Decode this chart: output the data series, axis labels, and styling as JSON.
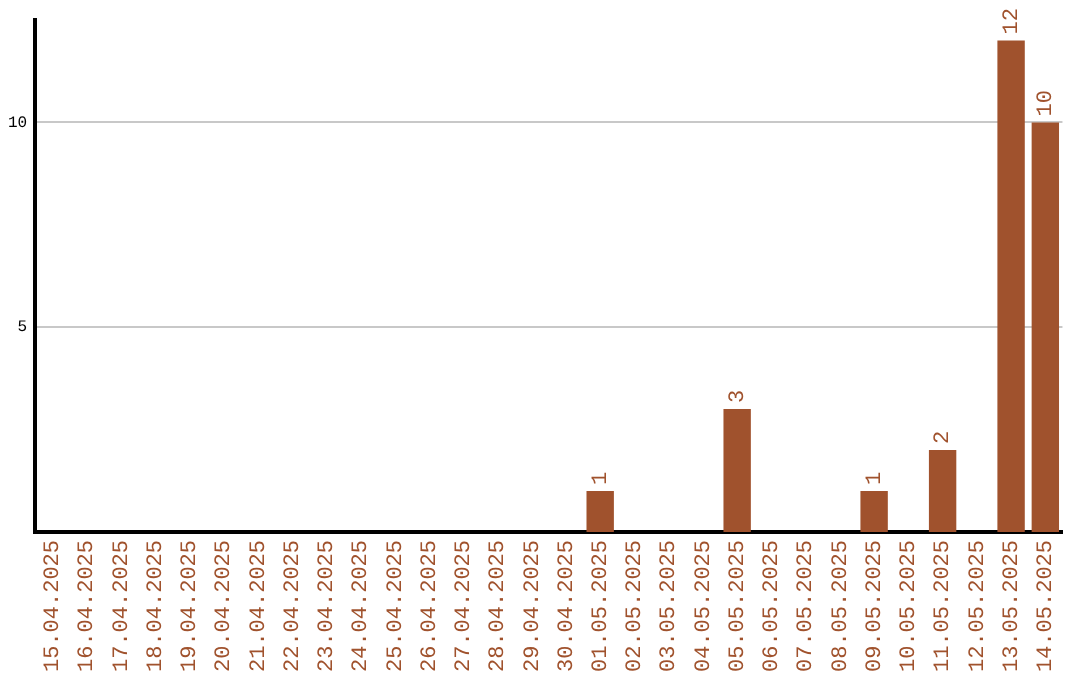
{
  "chart_data": {
    "type": "bar",
    "categories": [
      "15.04.2025",
      "16.04.2025",
      "17.04.2025",
      "18.04.2025",
      "19.04.2025",
      "20.04.2025",
      "21.04.2025",
      "22.04.2025",
      "23.04.2025",
      "24.04.2025",
      "25.04.2025",
      "26.04.2025",
      "27.04.2025",
      "28.04.2025",
      "29.04.2025",
      "30.04.2025",
      "01.05.2025",
      "02.05.2025",
      "03.05.2025",
      "04.05.2025",
      "05.05.2025",
      "06.05.2025",
      "07.05.2025",
      "08.05.2025",
      "09.05.2025",
      "10.05.2025",
      "11.05.2025",
      "12.05.2025",
      "13.05.2025",
      "14.05.2025"
    ],
    "values": [
      0,
      0,
      0,
      0,
      0,
      0,
      0,
      0,
      0,
      0,
      0,
      0,
      0,
      0,
      0,
      0,
      1,
      0,
      0,
      0,
      3,
      0,
      0,
      0,
      1,
      0,
      2,
      0,
      12,
      10
    ],
    "value_labels": [
      null,
      null,
      null,
      null,
      null,
      null,
      null,
      null,
      null,
      null,
      null,
      null,
      null,
      null,
      null,
      null,
      "1",
      null,
      null,
      null,
      "3",
      null,
      null,
      null,
      "1",
      null,
      "2",
      null,
      "12",
      "10"
    ],
    "color": "#a0522d",
    "ylim": [
      0,
      12.5
    ],
    "yticks": [
      5,
      10
    ],
    "grid": "y",
    "legend": false
  }
}
